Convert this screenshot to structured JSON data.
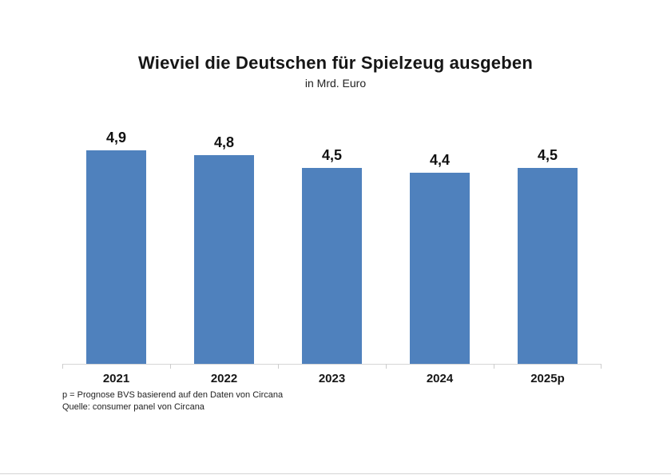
{
  "chart_data": {
    "type": "bar",
    "title": "Wieviel die Deutschen für Spielzeug ausgeben",
    "subtitle": "in Mrd. Euro",
    "categories": [
      "2021",
      "2022",
      "2023",
      "2024",
      "2025p"
    ],
    "values": [
      4.9,
      4.8,
      4.5,
      4.4,
      4.5
    ],
    "value_labels": [
      "4,9",
      "4,8",
      "4,5",
      "4,4",
      "4,5"
    ],
    "xlabel": "",
    "ylabel": "",
    "ylim": [
      0,
      5.2
    ],
    "grid": false,
    "legend": "none",
    "bar_color": "#4f81bd",
    "axis_color": "#d6d6d6",
    "footnotes": [
      "p = Prognose BVS basierend auf den Daten von Circana",
      "Quelle: consumer panel von Circana"
    ]
  }
}
